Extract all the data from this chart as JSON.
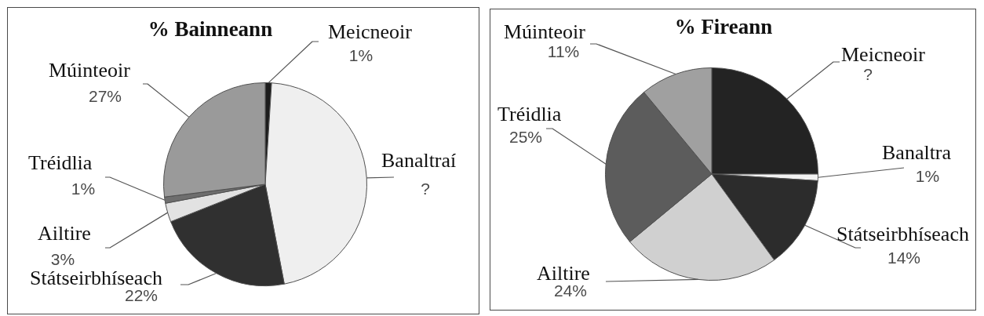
{
  "chart_data": [
    {
      "type": "pie",
      "title": "% Bainneann",
      "categories": [
        "Meicneoir",
        "Banaltraí",
        "Státseirbhíseach",
        "Ailtire",
        "Tréidlia",
        "Múinteoir"
      ],
      "values": [
        1,
        46,
        22,
        3,
        1,
        27
      ],
      "colors": [
        "#1c1c1c",
        "#efefef",
        "#303030",
        "#e2e2e2",
        "#6e6e6e",
        "#9a9a9a"
      ],
      "value_labels": [
        "1%",
        "?",
        "22%",
        "3%",
        "1%",
        "27%"
      ]
    },
    {
      "type": "pie",
      "title": "% Fireann",
      "categories": [
        "Meicneoir",
        "Banaltra",
        "Státseirbhíseach",
        "Ailtire",
        "Tréidlia",
        "Múinteoir"
      ],
      "values": [
        25,
        1,
        14,
        24,
        25,
        11
      ],
      "colors": [
        "#232323",
        "#f2f2f2",
        "#2c2c2c",
        "#d0d0d0",
        "#5c5c5c",
        "#a0a0a0"
      ],
      "value_labels": [
        "?",
        "1%",
        "14%",
        "24%",
        "25%",
        "11%"
      ]
    }
  ]
}
